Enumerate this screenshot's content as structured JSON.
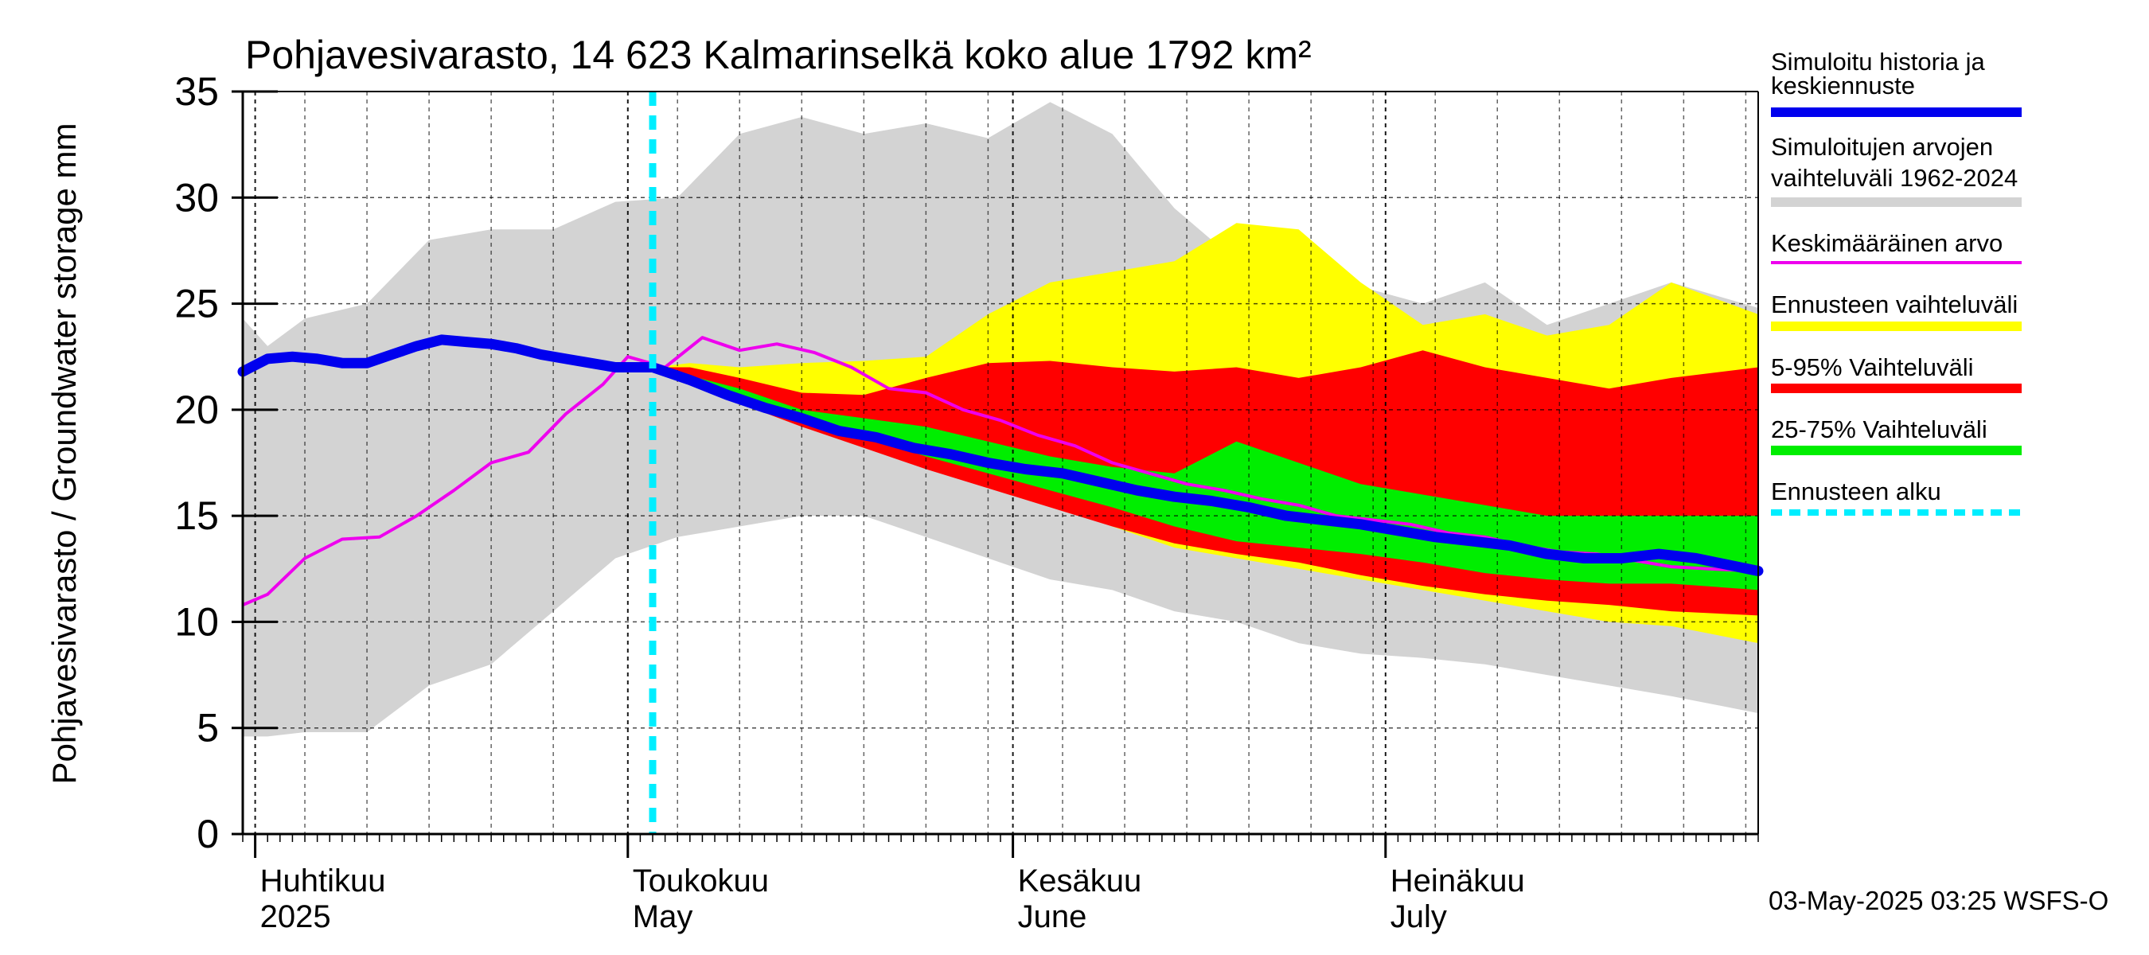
{
  "chart_data": {
    "type": "area",
    "title": "Pohjavesivarasto, 14 623 Kalmarinselkä koko alue 1792 km²",
    "ylabel": "Pohjavesivarasto / Groundwater storage   mm",
    "ylim": [
      0,
      35
    ],
    "yticks": [
      0,
      5,
      10,
      15,
      20,
      25,
      30,
      35
    ],
    "xlim": [
      "2025-03-31",
      "2025-07-31"
    ],
    "grid": true,
    "legend_position": "right",
    "month_labels": [
      {
        "date": "2025-04-01",
        "line1": "Huhtikuu",
        "line2": "2025"
      },
      {
        "date": "2025-05-01",
        "line1": "Toukokuu",
        "line2": "May"
      },
      {
        "date": "2025-06-01",
        "line1": "Kesäkuu",
        "line2": "June"
      },
      {
        "date": "2025-07-01",
        "line1": "Heinäkuu",
        "line2": "July"
      }
    ],
    "forecast_start": "2025-05-03",
    "footer": "03-May-2025 03:25 WSFS-O",
    "colors": {
      "history": "#0000ee",
      "sim_range": "#d3d3d3",
      "mean": "#ee00ee",
      "forecast_range": "#ffff00",
      "p5_95": "#ff0000",
      "p25_75": "#00ee00",
      "forecast_start": "#00eeff"
    },
    "legend": [
      {
        "key": "history",
        "label1": "Simuloitu historia ja",
        "label2": "keskiennuste",
        "style": "thick"
      },
      {
        "key": "sim_range",
        "label1": "Simuloitujen arvojen",
        "label2": "vaihteluväli 1962-2024",
        "style": "thick"
      },
      {
        "key": "mean",
        "label1": "Keskimääräinen arvo",
        "label2": "",
        "style": "thin"
      },
      {
        "key": "forecast_range",
        "label1": "Ennusteen vaihteluväli",
        "label2": "",
        "style": "thick"
      },
      {
        "key": "p5_95",
        "label1": "5-95% Vaihteluväli",
        "label2": "",
        "style": "thick"
      },
      {
        "key": "p25_75",
        "label1": "25-75% Vaihteluväli",
        "label2": "",
        "style": "thick"
      },
      {
        "key": "forecast_start",
        "label1": "Ennusteen alku",
        "label2": "",
        "style": "dashed"
      }
    ],
    "series": {
      "sim_range": {
        "x": [
          "2025-03-31",
          "2025-04-02",
          "2025-04-05",
          "2025-04-10",
          "2025-04-15",
          "2025-04-20",
          "2025-04-25",
          "2025-04-30",
          "2025-05-05",
          "2025-05-10",
          "2025-05-15",
          "2025-05-20",
          "2025-05-25",
          "2025-05-30",
          "2025-06-04",
          "2025-06-09",
          "2025-06-14",
          "2025-06-19",
          "2025-06-24",
          "2025-06-29",
          "2025-07-04",
          "2025-07-09",
          "2025-07-14",
          "2025-07-19",
          "2025-07-24",
          "2025-07-31"
        ],
        "upper": [
          24.3,
          23.0,
          24.3,
          25.0,
          28.0,
          28.5,
          28.5,
          29.8,
          30.0,
          33.0,
          33.8,
          33.0,
          33.5,
          32.8,
          34.5,
          33.0,
          29.5,
          27.0,
          26.0,
          25.8,
          25.0,
          26.0,
          24.0,
          25.0,
          26.0,
          24.8
        ],
        "lower": [
          4.6,
          4.6,
          4.8,
          4.8,
          7.0,
          8.0,
          10.5,
          13.0,
          14.0,
          14.5,
          15.0,
          15.0,
          14.0,
          13.0,
          12.0,
          11.5,
          10.5,
          10.0,
          9.0,
          8.5,
          8.3,
          8.0,
          7.5,
          7.0,
          6.5,
          5.7
        ]
      },
      "forecast_range": {
        "x": [
          "2025-05-03",
          "2025-05-06",
          "2025-05-10",
          "2025-05-15",
          "2025-05-20",
          "2025-05-25",
          "2025-05-30",
          "2025-06-04",
          "2025-06-09",
          "2025-06-14",
          "2025-06-19",
          "2025-06-24",
          "2025-06-29",
          "2025-07-04",
          "2025-07-09",
          "2025-07-14",
          "2025-07-19",
          "2025-07-24",
          "2025-07-31"
        ],
        "upper": [
          22.0,
          22.2,
          22.0,
          22.2,
          22.3,
          22.5,
          24.5,
          26.0,
          26.5,
          27.0,
          28.8,
          28.5,
          26.0,
          24.0,
          24.5,
          23.5,
          24.0,
          26.0,
          24.5
        ],
        "lower": [
          22.0,
          21.5,
          20.5,
          19.5,
          18.5,
          17.5,
          16.5,
          15.5,
          14.5,
          13.5,
          13.0,
          12.5,
          12.0,
          11.5,
          11.0,
          10.5,
          10.0,
          9.8,
          9.0
        ]
      },
      "p5_95": {
        "x": [
          "2025-05-03",
          "2025-05-06",
          "2025-05-10",
          "2025-05-15",
          "2025-05-20",
          "2025-05-25",
          "2025-05-30",
          "2025-06-04",
          "2025-06-09",
          "2025-06-14",
          "2025-06-19",
          "2025-06-24",
          "2025-06-29",
          "2025-07-04",
          "2025-07-09",
          "2025-07-14",
          "2025-07-19",
          "2025-07-24",
          "2025-07-31"
        ],
        "upper": [
          22.0,
          22.0,
          21.5,
          20.8,
          20.7,
          21.5,
          22.2,
          22.3,
          22.0,
          21.8,
          22.0,
          21.5,
          22.0,
          22.8,
          22.0,
          21.5,
          21.0,
          21.5,
          22.0
        ],
        "lower": [
          22.0,
          21.4,
          20.3,
          19.2,
          18.2,
          17.2,
          16.3,
          15.4,
          14.5,
          13.7,
          13.2,
          12.8,
          12.2,
          11.7,
          11.3,
          11.0,
          10.8,
          10.5,
          10.3
        ]
      },
      "p25_75": {
        "x": [
          "2025-05-03",
          "2025-05-06",
          "2025-05-10",
          "2025-05-15",
          "2025-05-20",
          "2025-05-25",
          "2025-05-30",
          "2025-06-04",
          "2025-06-09",
          "2025-06-14",
          "2025-06-19",
          "2025-06-24",
          "2025-06-29",
          "2025-07-04",
          "2025-07-09",
          "2025-07-14",
          "2025-07-19",
          "2025-07-24",
          "2025-07-31"
        ],
        "upper": [
          22.0,
          21.6,
          21.0,
          20.0,
          19.6,
          19.2,
          18.5,
          17.8,
          17.3,
          17.0,
          18.5,
          17.5,
          16.5,
          16.0,
          15.5,
          15.0,
          15.0,
          15.0,
          15.0
        ],
        "lower": [
          22.0,
          21.5,
          20.5,
          19.5,
          18.7,
          17.8,
          17.0,
          16.2,
          15.4,
          14.5,
          13.8,
          13.5,
          13.2,
          12.8,
          12.3,
          12.0,
          11.8,
          11.8,
          11.5
        ]
      },
      "mean": {
        "x": [
          "2025-03-31",
          "2025-04-02",
          "2025-04-05",
          "2025-04-08",
          "2025-04-11",
          "2025-04-14",
          "2025-04-17",
          "2025-04-20",
          "2025-04-23",
          "2025-04-26",
          "2025-04-29",
          "2025-05-01",
          "2025-05-04",
          "2025-05-07",
          "2025-05-10",
          "2025-05-13",
          "2025-05-16",
          "2025-05-19",
          "2025-05-22",
          "2025-05-25",
          "2025-05-28",
          "2025-05-31",
          "2025-06-03",
          "2025-06-06",
          "2025-06-09",
          "2025-06-12",
          "2025-06-15",
          "2025-06-18",
          "2025-06-21",
          "2025-06-24",
          "2025-06-27",
          "2025-06-30",
          "2025-07-03",
          "2025-07-06",
          "2025-07-09",
          "2025-07-12",
          "2025-07-15",
          "2025-07-18",
          "2025-07-21",
          "2025-07-24",
          "2025-07-27",
          "2025-07-31"
        ],
        "values": [
          10.8,
          11.3,
          13.0,
          13.9,
          14.0,
          15.0,
          16.2,
          17.5,
          18.0,
          19.8,
          21.2,
          22.5,
          22.0,
          23.4,
          22.8,
          23.1,
          22.7,
          22.0,
          21.0,
          20.8,
          20.0,
          19.5,
          18.8,
          18.3,
          17.5,
          17.0,
          16.5,
          16.2,
          15.8,
          15.5,
          15.0,
          14.8,
          14.6,
          14.2,
          14.0,
          13.6,
          13.3,
          13.2,
          12.9,
          12.6,
          12.5,
          12.4
        ]
      },
      "history": {
        "x": [
          "2025-03-31",
          "2025-04-02",
          "2025-04-04",
          "2025-04-06",
          "2025-04-08",
          "2025-04-10",
          "2025-04-12",
          "2025-04-14",
          "2025-04-16",
          "2025-04-18",
          "2025-04-20",
          "2025-04-22",
          "2025-04-24",
          "2025-04-26",
          "2025-04-28",
          "2025-04-30",
          "2025-05-03",
          "2025-05-06",
          "2025-05-09",
          "2025-05-12",
          "2025-05-15",
          "2025-05-18",
          "2025-05-21",
          "2025-05-24",
          "2025-05-27",
          "2025-05-30",
          "2025-06-02",
          "2025-06-05",
          "2025-06-08",
          "2025-06-11",
          "2025-06-14",
          "2025-06-17",
          "2025-06-20",
          "2025-06-23",
          "2025-06-26",
          "2025-06-29",
          "2025-07-02",
          "2025-07-05",
          "2025-07-08",
          "2025-07-11",
          "2025-07-14",
          "2025-07-17",
          "2025-07-20",
          "2025-07-23",
          "2025-07-26",
          "2025-07-31"
        ],
        "values": [
          21.8,
          22.4,
          22.5,
          22.4,
          22.2,
          22.2,
          22.6,
          23.0,
          23.3,
          23.2,
          23.1,
          22.9,
          22.6,
          22.4,
          22.2,
          22.0,
          22.0,
          21.4,
          20.7,
          20.1,
          19.6,
          19.0,
          18.7,
          18.2,
          17.9,
          17.5,
          17.2,
          17.0,
          16.6,
          16.2,
          15.9,
          15.7,
          15.4,
          15.0,
          14.8,
          14.6,
          14.3,
          14.0,
          13.8,
          13.6,
          13.2,
          13.0,
          13.0,
          13.2,
          13.0,
          12.4
        ]
      }
    }
  }
}
